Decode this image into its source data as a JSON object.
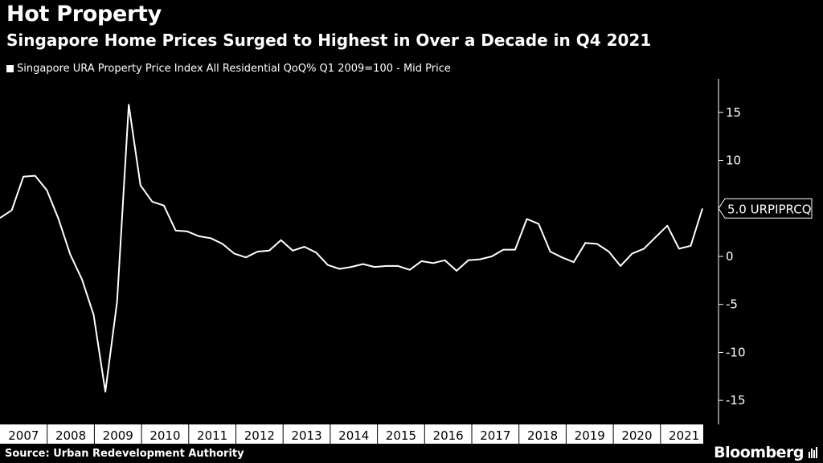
{
  "header": {
    "title": "Hot Property",
    "subtitle": "Singapore Home Prices Surged to Highest in Over a Decade in Q4 2021"
  },
  "footer": {
    "source": "Source: Urban Redevelopment Authority",
    "brand": "Bloomberg"
  },
  "colors": {
    "background": "#000000",
    "line": "#ffffff",
    "axis_band": "#ffffff"
  },
  "chart_data": {
    "type": "line",
    "series": [
      {
        "name": "Singapore URA Property Price Index All Residential QoQ% Q1 2009=100 - Mid Price",
        "last_label": "5.0 URPIPRCQ",
        "x": [
          "2006 Q4",
          "2007 Q1",
          "2007 Q2",
          "2007 Q3",
          "2007 Q4",
          "2008 Q1",
          "2008 Q2",
          "2008 Q3",
          "2008 Q4",
          "2009 Q1",
          "2009 Q2",
          "2009 Q3",
          "2009 Q4",
          "2010 Q1",
          "2010 Q2",
          "2010 Q3",
          "2010 Q4",
          "2011 Q1",
          "2011 Q2",
          "2011 Q3",
          "2011 Q4",
          "2012 Q1",
          "2012 Q2",
          "2012 Q3",
          "2012 Q4",
          "2013 Q1",
          "2013 Q2",
          "2013 Q3",
          "2013 Q4",
          "2014 Q1",
          "2014 Q2",
          "2014 Q3",
          "2014 Q4",
          "2015 Q1",
          "2015 Q2",
          "2015 Q3",
          "2015 Q4",
          "2016 Q1",
          "2016 Q2",
          "2016 Q3",
          "2016 Q4",
          "2017 Q1",
          "2017 Q2",
          "2017 Q3",
          "2017 Q4",
          "2018 Q1",
          "2018 Q2",
          "2018 Q3",
          "2018 Q4",
          "2019 Q1",
          "2019 Q2",
          "2019 Q3",
          "2019 Q4",
          "2020 Q1",
          "2020 Q2",
          "2020 Q3",
          "2020 Q4",
          "2021 Q1",
          "2021 Q2",
          "2021 Q3",
          "2021 Q4"
        ],
        "values": [
          4.0,
          4.8,
          8.3,
          8.4,
          6.9,
          3.9,
          0.2,
          -2.4,
          -6.1,
          -14.1,
          -4.7,
          15.8,
          7.4,
          5.7,
          5.3,
          2.7,
          2.6,
          2.1,
          1.9,
          1.3,
          0.3,
          -0.1,
          0.5,
          0.6,
          1.7,
          0.6,
          1.0,
          0.4,
          -0.9,
          -1.3,
          -1.1,
          -0.8,
          -1.1,
          -1.0,
          -1.0,
          -1.4,
          -0.5,
          -0.7,
          -0.4,
          -1.5,
          -0.4,
          -0.3,
          0.0,
          0.7,
          0.7,
          3.9,
          3.4,
          0.5,
          -0.1,
          -0.6,
          1.4,
          1.3,
          0.5,
          -1.0,
          0.3,
          0.8,
          2.0,
          3.2,
          0.8,
          1.1,
          5.0
        ]
      }
    ],
    "x_axis": {
      "labels": [
        "2007",
        "2008",
        "2009",
        "2010",
        "2011",
        "2012",
        "2013",
        "2014",
        "2015",
        "2016",
        "2017",
        "2018",
        "2019",
        "2020",
        "2021"
      ]
    },
    "y_axis": {
      "ticks": [
        15,
        10,
        5,
        0,
        -5,
        -10,
        -15
      ],
      "tick_labels": [
        "15",
        "10",
        "5",
        "0",
        "-5",
        "-10",
        "-15"
      ],
      "range": [
        -17.5,
        18.5
      ],
      "position": "right"
    },
    "grid": false,
    "legend_position": "top-left"
  }
}
